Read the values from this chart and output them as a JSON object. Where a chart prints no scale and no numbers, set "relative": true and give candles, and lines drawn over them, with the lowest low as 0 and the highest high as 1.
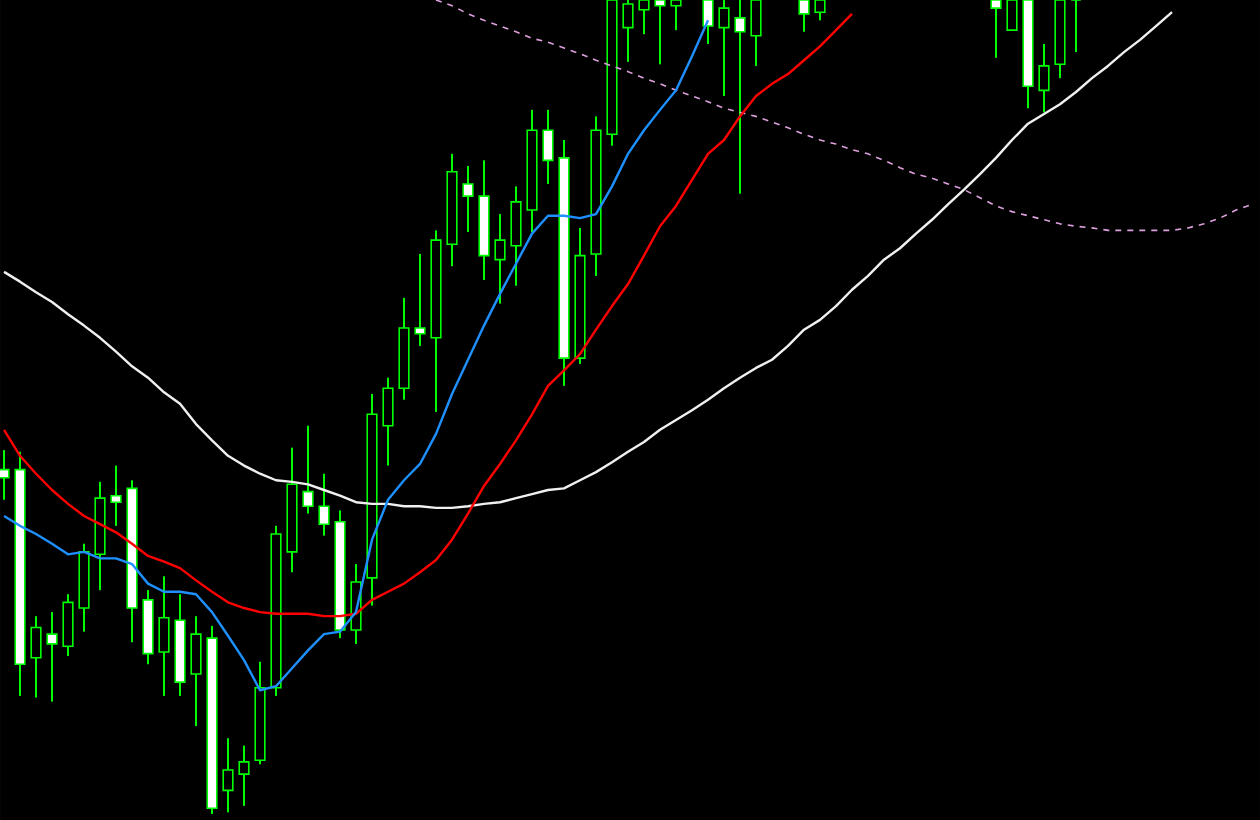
{
  "chart_data": {
    "type": "candlestick",
    "relative": true,
    "color": "#00ff00",
    "categories": [
      null,
      null,
      null,
      null,
      null,
      null,
      null,
      null,
      null,
      null,
      null,
      null,
      null,
      null,
      null,
      null,
      null,
      null,
      null,
      null,
      null,
      null,
      null,
      null,
      null,
      null,
      null,
      null,
      null,
      null,
      null,
      null,
      null,
      null,
      null,
      null,
      null,
      null,
      null,
      null,
      null,
      null,
      null,
      null,
      null,
      null,
      null,
      null,
      null,
      null,
      null,
      null,
      null,
      null,
      null,
      null,
      null,
      null,
      null,
      null,
      null,
      null,
      null,
      null,
      null,
      null,
      null,
      null,
      null,
      null,
      null,
      null,
      null,
      null,
      null,
      null,
      null,
      null,
      null
    ],
    "ohlc": [
      [
        0.423,
        0.447,
        0.386,
        0.413
      ],
      [
        0.423,
        0.445,
        0.145,
        0.184
      ],
      [
        0.192,
        0.243,
        0.143,
        0.229
      ],
      [
        0.221,
        0.248,
        0.138,
        0.209
      ],
      [
        0.206,
        0.27,
        0.194,
        0.26
      ],
      [
        0.253,
        0.332,
        0.224,
        0.322
      ],
      [
        0.319,
        0.408,
        0.275,
        0.388
      ],
      [
        0.391,
        0.428,
        0.354,
        0.383
      ],
      [
        0.4,
        0.41,
        0.211,
        0.253
      ],
      [
        0.263,
        0.275,
        0.184,
        0.197
      ],
      [
        0.199,
        0.292,
        0.145,
        0.241
      ],
      [
        0.238,
        0.27,
        0.145,
        0.162
      ],
      [
        0.172,
        0.243,
        0.108,
        0.221
      ],
      [
        0.216,
        0.231,
        0,
        0.007
      ],
      [
        0.029,
        0.093,
        0.002,
        0.054
      ],
      [
        0.049,
        0.084,
        0.01,
        0.064
      ],
      [
        0.066,
        0.187,
        0.061,
        0.155
      ],
      [
        0.155,
        0.354,
        0.145,
        0.344
      ],
      [
        0.322,
        0.45,
        0.297,
        0.405
      ],
      [
        0.396,
        0.477,
        0.369,
        0.378
      ],
      [
        0.378,
        0.418,
        0.342,
        0.356
      ],
      [
        0.359,
        0.373,
        0.216,
        0.226
      ],
      [
        0.226,
        0.307,
        0.209,
        0.285
      ],
      [
        0.29,
        0.516,
        0.256,
        0.491
      ],
      [
        0.477,
        0.536,
        0.428,
        0.523
      ],
      [
        0.523,
        0.634,
        0.509,
        0.597
      ],
      [
        0.597,
        0.688,
        0.575,
        0.59
      ],
      [
        0.585,
        0.717,
        0.494,
        0.705
      ],
      [
        0.7,
        0.811,
        0.673,
        0.789
      ],
      [
        0.774,
        0.796,
        0.715,
        0.759
      ],
      [
        0.759,
        0.803,
        0.656,
        0.686
      ],
      [
        0.681,
        0.737,
        0.627,
        0.705
      ],
      [
        0.698,
        0.771,
        0.649,
        0.752
      ],
      [
        0.742,
        0.865,
        0.715,
        0.84
      ],
      [
        0.84,
        0.865,
        0.774,
        0.803
      ],
      [
        0.806,
        0.828,
        0.526,
        0.56
      ],
      [
        0.56,
        0.72,
        0.553,
        0.686
      ],
      [
        0.688,
        0.857,
        0.661,
        0.84
      ],
      [
        0.835,
        1,
        0.821,
        1
      ],
      [
        0.966,
        1,
        0.924,
        0.995
      ],
      [
        0.988,
        1,
        0.958,
        1
      ],
      [
        1,
        1,
        0.921,
        0.993
      ],
      [
        0.993,
        1,
        0.963,
        1
      ],
      null,
      [
        1,
        1,
        0.946,
        0.968
      ],
      [
        0.966,
        1,
        0.882,
        0.99
      ],
      [
        0.978,
        1,
        0.762,
        0.961
      ],
      [
        0.956,
        1,
        0.919,
        1
      ],
      null,
      null,
      [
        1,
        1,
        0.961,
        0.983
      ],
      [
        0.985,
        1,
        0.975,
        1
      ],
      null,
      null,
      null,
      null,
      null,
      null,
      null,
      null,
      null,
      null,
      [
        1,
        1,
        0.929,
        0.99
      ],
      [
        0.963,
        1,
        0.963,
        1
      ],
      [
        1,
        1,
        0.867,
        0.894
      ],
      [
        0.889,
        0.946,
        0.862,
        0.919
      ],
      [
        0.921,
        1,
        0.904,
        1
      ],
      [
        1,
        1,
        0.936,
        1
      ],
      null,
      null,
      null,
      null,
      null,
      null,
      null,
      null,
      null,
      null,
      null
    ],
    "series": [
      {
        "type": "line",
        "color": "#f0f0f0",
        "values": [
          0.666,
          0.654,
          0.641,
          0.629,
          0.614,
          0.6,
          0.585,
          0.568,
          0.55,
          0.536,
          0.518,
          0.504,
          0.479,
          0.459,
          0.44,
          0.428,
          0.418,
          0.41,
          0.408,
          0.405,
          0.398,
          0.391,
          0.383,
          0.381,
          0.381,
          0.378,
          0.378,
          0.376,
          0.376,
          0.378,
          0.381,
          0.383,
          0.388,
          0.393,
          0.398,
          0.4,
          0.41,
          0.42,
          0.432,
          0.445,
          0.457,
          0.472,
          0.484,
          0.496,
          0.509,
          0.523,
          0.536,
          0.548,
          0.558,
          0.575,
          0.595,
          0.607,
          0.624,
          0.644,
          0.661,
          0.681,
          0.695,
          0.713,
          0.73,
          0.749,
          0.767,
          0.786,
          0.806,
          0.828,
          0.848,
          0.86,
          0.872,
          0.887,
          0.904,
          0.919,
          0.936,
          0.951,
          0.968,
          0.985,
          null,
          null,
          null,
          null,
          null
        ]
      },
      {
        "type": "line",
        "color": "#dda0dd",
        "line_style": "dashed",
        "values": [
          null,
          null,
          null,
          null,
          null,
          null,
          null,
          null,
          null,
          null,
          null,
          null,
          null,
          null,
          null,
          null,
          null,
          null,
          null,
          null,
          null,
          null,
          null,
          null,
          null,
          null,
          null,
          1,
          0.993,
          0.983,
          0.975,
          0.968,
          0.961,
          0.953,
          0.948,
          0.941,
          0.934,
          0.926,
          0.919,
          0.912,
          0.904,
          0.897,
          0.889,
          0.882,
          0.875,
          0.867,
          0.862,
          0.857,
          0.85,
          0.843,
          0.835,
          0.828,
          0.823,
          0.816,
          0.811,
          0.803,
          0.794,
          0.786,
          0.781,
          0.774,
          0.767,
          0.757,
          0.747,
          0.74,
          0.735,
          0.73,
          0.725,
          0.722,
          0.72,
          0.717,
          0.717,
          0.717,
          0.717,
          0.717,
          0.72,
          0.725,
          0.732,
          0.742,
          0.749
        ]
      },
      {
        "type": "line",
        "color": "#ff0000",
        "values": [
          0.472,
          0.44,
          0.418,
          0.398,
          0.381,
          0.366,
          0.356,
          0.346,
          0.332,
          0.317,
          0.31,
          0.302,
          0.287,
          0.273,
          0.26,
          0.253,
          0.248,
          0.246,
          0.246,
          0.246,
          0.243,
          0.243,
          0.246,
          0.263,
          0.273,
          0.283,
          0.297,
          0.312,
          0.337,
          0.369,
          0.403,
          0.43,
          0.459,
          0.491,
          0.526,
          0.545,
          0.565,
          0.595,
          0.624,
          0.651,
          0.686,
          0.722,
          0.747,
          0.779,
          0.811,
          0.828,
          0.857,
          0.882,
          0.897,
          0.909,
          0.926,
          0.943,
          0.963,
          0.983,
          null,
          null,
          null,
          null,
          null,
          null,
          null,
          null,
          null,
          null,
          null,
          null,
          null,
          null,
          null,
          null,
          null,
          null,
          null,
          null,
          null,
          null,
          null,
          null,
          null
        ]
      },
      {
        "type": "line",
        "color": "#1e90ff",
        "values": [
          0.366,
          0.354,
          0.344,
          0.332,
          0.319,
          0.322,
          0.314,
          0.314,
          0.307,
          0.283,
          0.273,
          0.273,
          0.27,
          0.248,
          0.219,
          0.189,
          0.152,
          0.157,
          0.179,
          0.201,
          0.221,
          0.224,
          0.248,
          0.337,
          0.386,
          0.41,
          0.43,
          0.467,
          0.516,
          0.558,
          0.6,
          0.639,
          0.676,
          0.713,
          0.735,
          0.735,
          0.732,
          0.737,
          0.771,
          0.811,
          0.84,
          0.865,
          0.889,
          0.931,
          0.975,
          null,
          null,
          null,
          null,
          null,
          null,
          null,
          null,
          null,
          null,
          null,
          null,
          null,
          null,
          null,
          null,
          null,
          null,
          null,
          null,
          null,
          null,
          null,
          null,
          null,
          null,
          null,
          null,
          null,
          null,
          null,
          null,
          null,
          null
        ]
      }
    ]
  }
}
